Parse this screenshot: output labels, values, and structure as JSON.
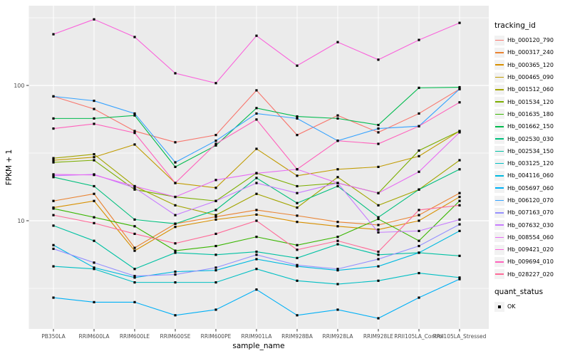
{
  "chart_data": {
    "type": "line",
    "title": "",
    "xlabel": "sample_name",
    "ylabel": "FPKM + 1",
    "y_scale": "log10",
    "y_major_ticks": [
      100,
      10
    ],
    "y_minor_gridlines": [
      316.23,
      31.62,
      3.162
    ],
    "grid": "ggplot-gray-panel-white-grid",
    "legend_position": "right",
    "x_categories": [
      "PB350LA",
      "RRIM600LA",
      "RRIM600LE",
      "RRIM600SE",
      "RRIM600PE",
      "RRIM901LA",
      "RRIM928BA",
      "RRIM928LA",
      "RRIM928LE",
      "RRII105LA_Control",
      "RRII105LA_Stressed"
    ],
    "legend": {
      "color_title": "tracking_id",
      "shape_title": "quant_status",
      "shape_entries": [
        "OK"
      ]
    },
    "point_style": {
      "shape": "filled-square",
      "color": "#000000"
    },
    "colors": {
      "panel_background": "#EBEBEB",
      "gridline": "#FFFFFF",
      "tick_text": "#4D4D4D",
      "axis_title_text": "#000000",
      "legend_key_background": "#F2F2F2"
    },
    "series": [
      {
        "name": "Hb_000120_790",
        "color": "#F8766D",
        "values": [
          83,
          67,
          46,
          38,
          43,
          92,
          43,
          60,
          45,
          62,
          94
        ]
      },
      {
        "name": "Hb_000317_240",
        "color": "#EA8331",
        "values": [
          14,
          15.8,
          6.3,
          9.5,
          10.7,
          12,
          10.9,
          9.8,
          9.3,
          11,
          16
        ]
      },
      {
        "name": "Hb_000365_120",
        "color": "#D89000",
        "values": [
          12.5,
          14,
          6.0,
          9.0,
          10.2,
          11.1,
          9.8,
          9.1,
          8.6,
          10,
          15
        ]
      },
      {
        "name": "Hb_000465_090",
        "color": "#C09B00",
        "values": [
          28,
          29.5,
          36.6,
          19,
          17.5,
          34,
          21.5,
          24,
          25,
          30,
          46
        ]
      },
      {
        "name": "Hb_001512_060",
        "color": "#A3A500",
        "values": [
          29,
          31,
          18,
          13,
          11,
          15.8,
          12.5,
          21,
          13,
          17,
          28
        ]
      },
      {
        "name": "Hb_001534_120",
        "color": "#7CAE00",
        "values": [
          27,
          28,
          17,
          15,
          14,
          22.5,
          18,
          19,
          16,
          33,
          46
        ]
      },
      {
        "name": "Hb_001635_180",
        "color": "#39B600",
        "values": [
          12.3,
          10.6,
          9.1,
          6.0,
          6.5,
          7.6,
          6.6,
          7.6,
          10.3,
          7.1,
          14
        ]
      },
      {
        "name": "Hb_001662_150",
        "color": "#00BB4E",
        "values": [
          57,
          57,
          60,
          25,
          36,
          68,
          59,
          57,
          51,
          96,
          97
        ]
      },
      {
        "name": "Hb_002530_030",
        "color": "#00BF7D",
        "values": [
          21,
          18,
          10.2,
          9.5,
          12,
          20.7,
          13.5,
          18,
          10.6,
          17,
          24
        ]
      },
      {
        "name": "Hb_002534_150",
        "color": "#00C1A3",
        "values": [
          9.2,
          7.1,
          4.4,
          5.8,
          5.6,
          5.9,
          5.3,
          6.7,
          5.6,
          5.8,
          5.5
        ]
      },
      {
        "name": "Hb_003125_120",
        "color": "#00BFC4",
        "values": [
          4.6,
          4.4,
          3.5,
          3.5,
          3.5,
          4.4,
          3.6,
          3.4,
          3.6,
          4.1,
          3.8
        ]
      },
      {
        "name": "Hb_004116_060",
        "color": "#00BAE0",
        "values": [
          6.6,
          4.5,
          3.8,
          4.2,
          4.3,
          5.2,
          4.6,
          4.3,
          4.6,
          5.8,
          8.4
        ]
      },
      {
        "name": "Hb_005697_060",
        "color": "#00B0F6",
        "values": [
          2.7,
          2.5,
          2.5,
          2.0,
          2.2,
          3.1,
          2.0,
          2.2,
          1.9,
          2.7,
          3.7
        ]
      },
      {
        "name": "Hb_006120_070",
        "color": "#35A2FF",
        "values": [
          83,
          77,
          62,
          27,
          39,
          62,
          57,
          39,
          48,
          50,
          94
        ]
      },
      {
        "name": "Hb_007163_070",
        "color": "#9590FF",
        "values": [
          6.2,
          4.9,
          3.9,
          4.0,
          4.5,
          5.6,
          4.7,
          4.4,
          5.2,
          6.5,
          9.4
        ]
      },
      {
        "name": "Hb_007632_030",
        "color": "#C77CFF",
        "values": [
          21.5,
          22,
          17.5,
          11,
          14,
          19,
          16,
          19,
          8.2,
          8.4,
          10.2
        ]
      },
      {
        "name": "Hb_008554_060",
        "color": "#E76BF3",
        "values": [
          22,
          21.8,
          18,
          15,
          20,
          22.4,
          24,
          19,
          16,
          23,
          45
        ]
      },
      {
        "name": "Hb_009421_020",
        "color": "#FA62DB",
        "values": [
          239,
          308,
          228,
          123,
          104,
          233,
          140,
          209,
          155,
          217,
          290
        ]
      },
      {
        "name": "Hb_009694_010",
        "color": "#FF62BC",
        "values": [
          48,
          52,
          44.6,
          19,
          37,
          56,
          24,
          39,
          37,
          50,
          75
        ]
      },
      {
        "name": "Hb_028227_020",
        "color": "#FF6A98",
        "values": [
          11,
          9.6,
          8.0,
          6.8,
          8.0,
          10,
          6.1,
          7.1,
          5.9,
          12,
          13
        ]
      }
    ]
  }
}
